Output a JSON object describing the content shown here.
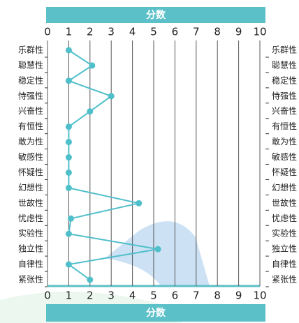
{
  "chart_data": {
    "type": "line",
    "xlabel": "分数",
    "categories": [
      "乐群性",
      "聪慧性",
      "稳定性",
      "恃强性",
      "兴奋性",
      "有恒性",
      "敢为性",
      "敏感性",
      "怀疑性",
      "幻想性",
      "世故性",
      "忧虑性",
      "实验性",
      "独立性",
      "自律性",
      "紧张性"
    ],
    "series": [
      {
        "color": "#4fbfca",
        "values": [
          1,
          2.1,
          1,
          3,
          2,
          1,
          1,
          1,
          1,
          1,
          4.3,
          1.1,
          1,
          5.2,
          1,
          2
        ]
      }
    ],
    "xlim": [
      0,
      10
    ],
    "xticks": [
      0,
      1,
      2,
      3,
      4,
      5,
      6,
      7,
      8,
      9,
      10
    ],
    "grid": true
  }
}
